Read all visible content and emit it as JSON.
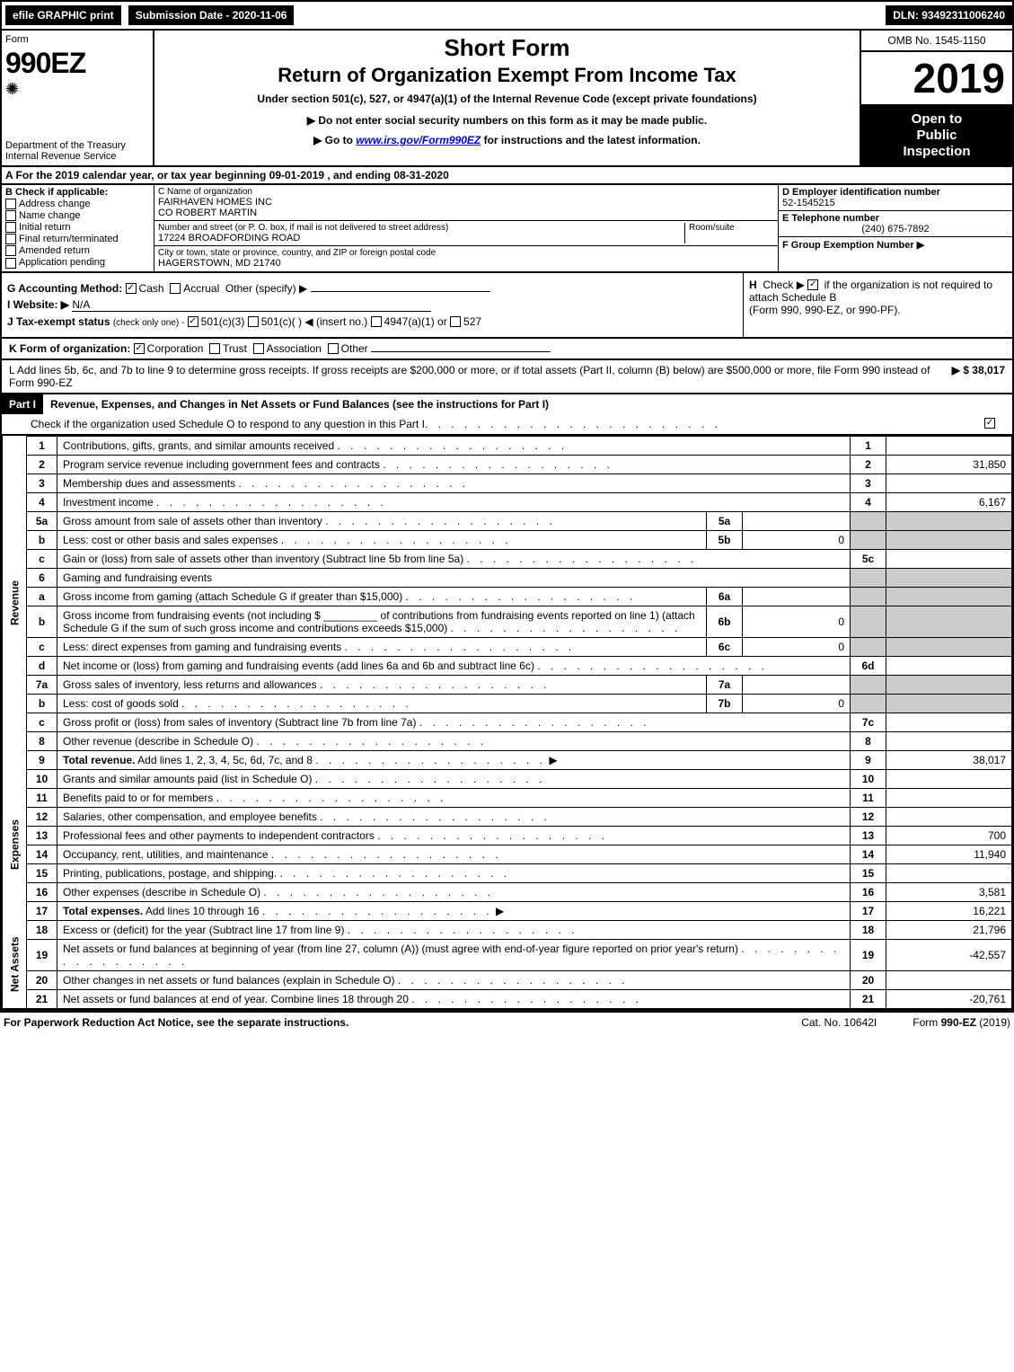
{
  "topbar": {
    "efile": "efile GRAPHIC print",
    "submission": "Submission Date - 2020-11-06",
    "dln": "DLN: 93492311006240"
  },
  "header": {
    "form_label": "Form",
    "form_number": "990EZ",
    "dept": "Department of the Treasury",
    "irs": "Internal Revenue Service",
    "short_form": "Short Form",
    "title": "Return of Organization Exempt From Income Tax",
    "under_section": "Under section 501(c), 527, or 4947(a)(1) of the Internal Revenue Code (except private foundations)",
    "donot": "▶ Do not enter social security numbers on this form as it may be made public.",
    "goto_pre": "▶ Go to ",
    "goto_link": "www.irs.gov/Form990EZ",
    "goto_post": " for instructions and the latest information.",
    "omb": "OMB No. 1545-1150",
    "year": "2019",
    "open1": "Open to",
    "open2": "Public",
    "open3": "Inspection"
  },
  "section_a": "A For the 2019 calendar year, or tax year beginning 09-01-2019 , and ending 08-31-2020",
  "col_b": {
    "label": "B Check if applicable:",
    "items": [
      "Address change",
      "Name change",
      "Initial return",
      "Final return/terminated",
      "Amended return",
      "Application pending"
    ]
  },
  "col_c": {
    "name_label": "C Name of organization",
    "name1": "FAIRHAVEN HOMES INC",
    "name2": "CO ROBERT MARTIN",
    "street_label": "Number and street (or P. O. box, if mail is not delivered to street address)",
    "room_label": "Room/suite",
    "street": "17224 BROADFORDING ROAD",
    "city_label": "City or town, state or province, country, and ZIP or foreign postal code",
    "city": "HAGERSTOWN, MD  21740"
  },
  "col_d": {
    "ein_label": "D Employer identification number",
    "ein": "52-1545215",
    "tel_label": "E Telephone number",
    "tel": "(240) 675-7892",
    "grp_label": "F Group Exemption Number ▶"
  },
  "line_g": {
    "label": "G Accounting Method:",
    "cash": "Cash",
    "accrual": "Accrual",
    "other": "Other (specify) ▶"
  },
  "line_h": {
    "label": "H",
    "text1": "Check ▶",
    "text2": "if the organization is not required to attach Schedule B",
    "text3": "(Form 990, 990-EZ, or 990-PF)."
  },
  "line_i": {
    "label": "I Website: ▶",
    "value": "N/A"
  },
  "line_j": {
    "label": "J Tax-exempt status",
    "hint": "(check only one) -",
    "opts": [
      "501(c)(3)",
      "501(c)( )",
      "◀ (insert no.)",
      "4947(a)(1) or",
      "527"
    ]
  },
  "line_k": {
    "label": "K Form of organization:",
    "opts": [
      "Corporation",
      "Trust",
      "Association",
      "Other"
    ]
  },
  "line_l": {
    "text": "L Add lines 5b, 6c, and 7b to line 9 to determine gross receipts. If gross receipts are $200,000 or more, or if total assets (Part II, column (B) below) are $500,000 or more, file Form 990 instead of Form 990-EZ",
    "amount": "▶ $ 38,017"
  },
  "part1": {
    "label": "Part I",
    "title": "Revenue, Expenses, and Changes in Net Assets or Fund Balances (see the instructions for Part I)",
    "check_o": "Check if the organization used Schedule O to respond to any question in this Part I"
  },
  "sections": {
    "revenue": "Revenue",
    "expenses": "Expenses",
    "netassets": "Net Assets"
  },
  "rows": [
    {
      "n": "1",
      "desc": "Contributions, gifts, grants, and similar amounts received",
      "rn": "1",
      "rv": ""
    },
    {
      "n": "2",
      "desc": "Program service revenue including government fees and contracts",
      "rn": "2",
      "rv": "31,850"
    },
    {
      "n": "3",
      "desc": "Membership dues and assessments",
      "rn": "3",
      "rv": ""
    },
    {
      "n": "4",
      "desc": "Investment income",
      "rn": "4",
      "rv": "6,167"
    },
    {
      "n": "5a",
      "desc": "Gross amount from sale of assets other than inventory",
      "in": "5a",
      "iv": "",
      "shaded": true
    },
    {
      "n": "b",
      "desc": "Less: cost or other basis and sales expenses",
      "in": "5b",
      "iv": "0",
      "shaded": true
    },
    {
      "n": "c",
      "desc": "Gain or (loss) from sale of assets other than inventory (Subtract line 5b from line 5a)",
      "rn": "5c",
      "rv": ""
    },
    {
      "n": "6",
      "desc": "Gaming and fundraising events",
      "shaded": true,
      "noRight": true
    },
    {
      "n": "a",
      "desc": "Gross income from gaming (attach Schedule G if greater than $15,000)",
      "in": "6a",
      "iv": "",
      "shaded": true
    },
    {
      "n": "b",
      "desc": "Gross income from fundraising events (not including $ _________ of contributions from fundraising events reported on line 1) (attach Schedule G if the sum of such gross income and contributions exceeds $15,000)",
      "in": "6b",
      "iv": "0",
      "shaded": true,
      "tall": true
    },
    {
      "n": "c",
      "desc": "Less: direct expenses from gaming and fundraising events",
      "in": "6c",
      "iv": "0",
      "shaded": true
    },
    {
      "n": "d",
      "desc": "Net income or (loss) from gaming and fundraising events (add lines 6a and 6b and subtract line 6c)",
      "rn": "6d",
      "rv": ""
    },
    {
      "n": "7a",
      "desc": "Gross sales of inventory, less returns and allowances",
      "in": "7a",
      "iv": "",
      "shaded": true
    },
    {
      "n": "b",
      "desc": "Less: cost of goods sold",
      "in": "7b",
      "iv": "0",
      "shaded": true
    },
    {
      "n": "c",
      "desc": "Gross profit or (loss) from sales of inventory (Subtract line 7b from line 7a)",
      "rn": "7c",
      "rv": ""
    },
    {
      "n": "8",
      "desc": "Other revenue (describe in Schedule O)",
      "rn": "8",
      "rv": ""
    },
    {
      "n": "9",
      "desc": "Total revenue. Add lines 1, 2, 3, 4, 5c, 6d, 7c, and 8",
      "rn": "9",
      "rv": "38,017",
      "bold": true,
      "arrow": true
    }
  ],
  "exp_rows": [
    {
      "n": "10",
      "desc": "Grants and similar amounts paid (list in Schedule O)",
      "rn": "10",
      "rv": ""
    },
    {
      "n": "11",
      "desc": "Benefits paid to or for members",
      "rn": "11",
      "rv": ""
    },
    {
      "n": "12",
      "desc": "Salaries, other compensation, and employee benefits",
      "rn": "12",
      "rv": ""
    },
    {
      "n": "13",
      "desc": "Professional fees and other payments to independent contractors",
      "rn": "13",
      "rv": "700"
    },
    {
      "n": "14",
      "desc": "Occupancy, rent, utilities, and maintenance",
      "rn": "14",
      "rv": "11,940"
    },
    {
      "n": "15",
      "desc": "Printing, publications, postage, and shipping.",
      "rn": "15",
      "rv": ""
    },
    {
      "n": "16",
      "desc": "Other expenses (describe in Schedule O)",
      "rn": "16",
      "rv": "3,581"
    },
    {
      "n": "17",
      "desc": "Total expenses. Add lines 10 through 16",
      "rn": "17",
      "rv": "16,221",
      "bold": true,
      "arrow": true
    }
  ],
  "na_rows": [
    {
      "n": "18",
      "desc": "Excess or (deficit) for the year (Subtract line 17 from line 9)",
      "rn": "18",
      "rv": "21,796"
    },
    {
      "n": "19",
      "desc": "Net assets or fund balances at beginning of year (from line 27, column (A)) (must agree with end-of-year figure reported on prior year's return)",
      "rn": "19",
      "rv": "-42,557",
      "tall": true
    },
    {
      "n": "20",
      "desc": "Other changes in net assets or fund balances (explain in Schedule O)",
      "rn": "20",
      "rv": ""
    },
    {
      "n": "21",
      "desc": "Net assets or fund balances at end of year. Combine lines 18 through 20",
      "rn": "21",
      "rv": "-20,761"
    }
  ],
  "footer": {
    "left": "For Paperwork Reduction Act Notice, see the separate instructions.",
    "mid": "Cat. No. 10642I",
    "right": "Form 990-EZ (2019)"
  }
}
